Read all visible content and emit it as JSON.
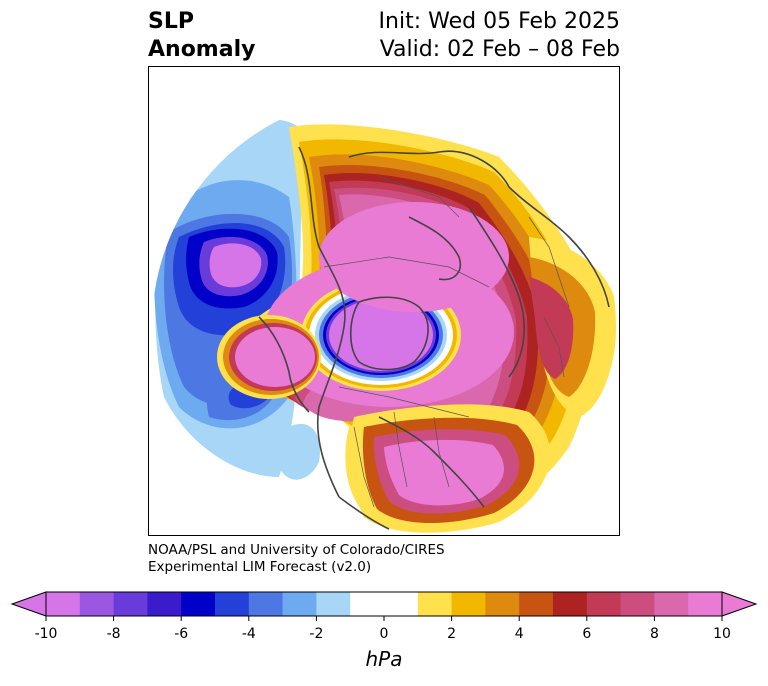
{
  "title": {
    "left_line1": "SLP",
    "left_line2": "Anomaly",
    "right_line1": "Init: Wed 05 Feb 2025",
    "right_line2": "Valid: 02 Feb – 08 Feb"
  },
  "credit": {
    "line1": "NOAA/PSL and University of Colorado/CIRES",
    "line2": "Experimental LIM Forecast (v2.0)"
  },
  "colorbar": {
    "unit": "hPa",
    "ticks": [
      "-10",
      "-8",
      "-6",
      "-4",
      "-2",
      "0",
      "2",
      "4",
      "6",
      "8",
      "10"
    ],
    "colors": [
      "#d675e8",
      "#9c57e2",
      "#6a3bdb",
      "#3a1ccd",
      "#0000c8",
      "#2341d9",
      "#4d78e3",
      "#6eaaf0",
      "#a8d6f7",
      "#ffffff",
      "#ffffff",
      "#ffe14d",
      "#f2b800",
      "#de8a0e",
      "#c85412",
      "#ac2322",
      "#c23a55",
      "#cc4d80",
      "#d969ac",
      "#e97bd5"
    ],
    "under_color": "#d675e8",
    "over_color": "#e97bd5",
    "range": [
      -10,
      10
    ],
    "step": 1
  },
  "map": {
    "projection": "north-polar-stereographic",
    "field": "sea level pressure anomaly"
  }
}
